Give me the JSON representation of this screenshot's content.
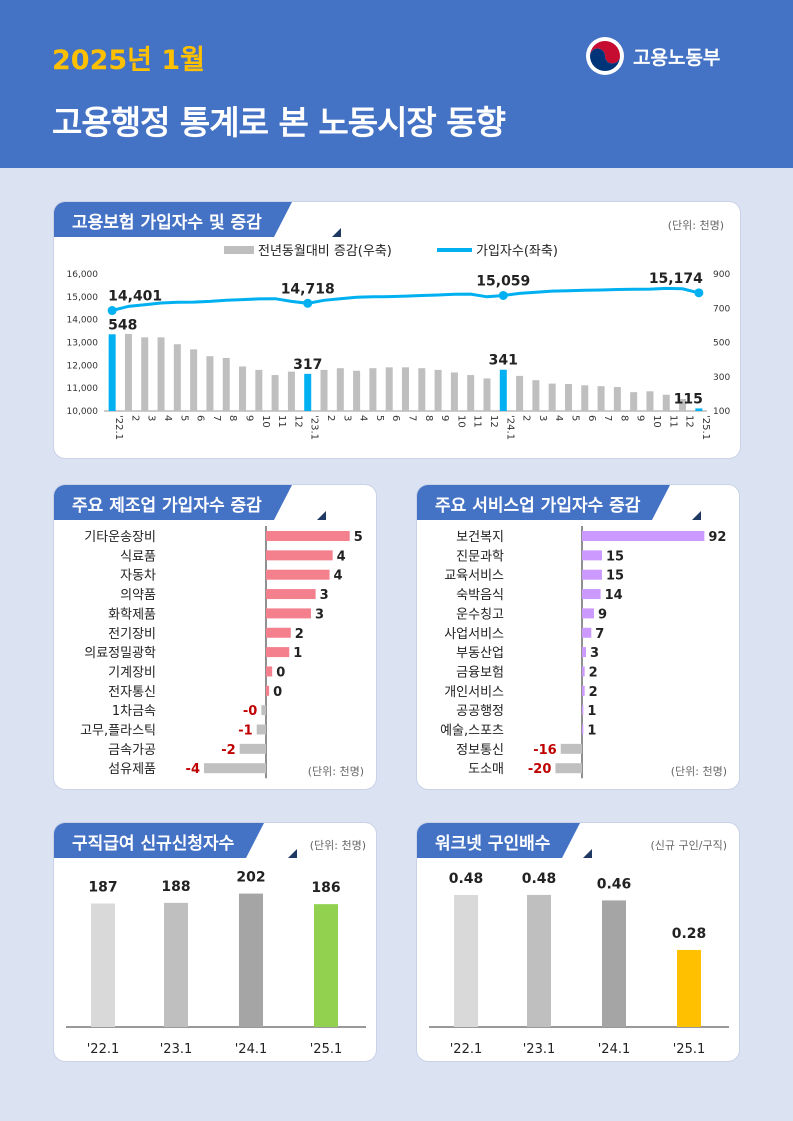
{
  "header": {
    "subtitle": "2025년 1월",
    "title": "고용행정 통계로 본 노동시장 동향",
    "ministry": "고용노동부",
    "logo_icon": "taegeuk-icon",
    "colors": {
      "banner": "#4472c4",
      "subtitle": "#ffc000"
    }
  },
  "panels": {
    "insurance": {
      "title": "고용보험 가입자수 및 증감",
      "unit": "(단위: 천명)"
    },
    "manufacturing": {
      "title": "주요 제조업 가입자수 증감",
      "unit": "(단위: 천명)"
    },
    "services": {
      "title": "주요 서비스업 가입자수 증감",
      "unit": "(단위: 천명)"
    },
    "jobseeking": {
      "title": "구직급여 신규신청자수",
      "unit": "(단위: 천명)"
    },
    "worknet": {
      "title": "워크넷 구인배수",
      "unit": "(신규 구인/구직)"
    }
  },
  "chart_data": [
    {
      "type": "bar+line",
      "categories": [
        "'22.1",
        "2",
        "3",
        "4",
        "5",
        "6",
        "7",
        "8",
        "9",
        "10",
        "11",
        "12",
        "'23.1",
        "2",
        "3",
        "4",
        "5",
        "6",
        "7",
        "8",
        "9",
        "10",
        "11",
        "12",
        "'24.1",
        "2",
        "3",
        "4",
        "5",
        "6",
        "7",
        "8",
        "9",
        "10",
        "11",
        "12",
        "'25.1"
      ],
      "series": [
        {
          "name": "전년동월대비 증감(우축)",
          "axis": "right",
          "color": "#bfbfbf",
          "highlight_color": "#00b0f0",
          "highlight": [
            0,
            12,
            24,
            36
          ],
          "values": [
            548,
            550,
            530,
            530,
            490,
            460,
            420,
            410,
            360,
            340,
            310,
            330,
            317,
            340,
            350,
            335,
            350,
            355,
            355,
            350,
            340,
            325,
            310,
            290,
            341,
            305,
            280,
            260,
            258,
            250,
            245,
            240,
            210,
            215,
            195,
            170,
            115
          ]
        },
        {
          "name": "가입자수(좌축)",
          "axis": "left",
          "color": "#00b0f0",
          "values": [
            14401,
            14580,
            14650,
            14730,
            14760,
            14770,
            14800,
            14850,
            14880,
            14910,
            14920,
            14800,
            14718,
            14850,
            14920,
            14980,
            15000,
            15010,
            15030,
            15060,
            15080,
            15110,
            15120,
            15000,
            15059,
            15150,
            15200,
            15250,
            15270,
            15290,
            15300,
            15320,
            15330,
            15340,
            15370,
            15350,
            15174
          ]
        }
      ],
      "labels": [
        {
          "index": 0,
          "bar": "548",
          "line": "14,401"
        },
        {
          "index": 12,
          "bar": "317",
          "line": "14,718"
        },
        {
          "index": 24,
          "bar": "341",
          "line": "15,059"
        },
        {
          "index": 36,
          "bar": "115",
          "line": "15,174"
        }
      ],
      "left_axis": {
        "range": [
          10000,
          16000
        ],
        "ticks": [
          "10,000",
          "11,000",
          "12,000",
          "13,000",
          "14,000",
          "15,000",
          "16,000"
        ]
      },
      "right_axis": {
        "range": [
          100,
          900
        ],
        "ticks": [
          "100",
          "300",
          "500",
          "700",
          "900"
        ]
      },
      "legend_position": "top"
    },
    {
      "type": "bar",
      "orientation": "horizontal",
      "categories": [
        "기타운송장비",
        "식료품",
        "자동차",
        "의약품",
        "화학제품",
        "전기장비",
        "의료정밀광학",
        "기계장비",
        "전자통신",
        "1차금속",
        "고무,플라스틱",
        "금속가공",
        "섬유제품"
      ],
      "values": [
        5.4,
        4.3,
        4.1,
        3.2,
        2.9,
        1.6,
        1.5,
        0.4,
        0.2,
        -0.3,
        -0.6,
        -1.7,
        -4.0
      ],
      "value_labels": [
        "5",
        "4",
        "4",
        "3",
        "3",
        "2",
        "1",
        "0",
        "0",
        "-0",
        "-1",
        "-2",
        "-4"
      ],
      "xlim": [
        -4.8,
        5.5
      ],
      "colors": {
        "positive": "#f4808e",
        "negative": "#c0c0c0",
        "negative_label": "#c00000"
      }
    },
    {
      "type": "bar",
      "orientation": "horizontal",
      "categories": [
        "보건복지",
        "진문과학",
        "교육서비스",
        "숙박음식",
        "운수칭고",
        "사업서비스",
        "부동산업",
        "금융보험",
        "개인서비스",
        "공공행정",
        "예술,스포츠",
        "정보통신",
        "도소매"
      ],
      "values": [
        92,
        15,
        15,
        14,
        9,
        7,
        3,
        2,
        2,
        1,
        1,
        -16,
        -20
      ],
      "value_labels": [
        "92",
        "15",
        "15",
        "14",
        "9",
        "7",
        "3",
        "2",
        "2",
        "1",
        "1",
        "-16",
        "-20"
      ],
      "xlim": [
        -21,
        93
      ],
      "colors": {
        "positive": "#cc99ff",
        "negative": "#c0c0c0",
        "negative_label": "#c00000"
      }
    },
    {
      "type": "bar",
      "categories": [
        "'22.1",
        "'23.1",
        "'24.1",
        "'25.1"
      ],
      "values": [
        187,
        188,
        202,
        186
      ],
      "ylim": [
        0,
        215
      ],
      "colors": [
        "#d9d9d9",
        "#bfbfbf",
        "#a5a5a5",
        "#92d050"
      ]
    },
    {
      "type": "bar",
      "categories": [
        "'22.1",
        "'23.1",
        "'24.1",
        "'25.1"
      ],
      "values": [
        0.48,
        0.48,
        0.46,
        0.28
      ],
      "value_labels": [
        "0.48",
        "0.48",
        "0.46",
        "0.28"
      ],
      "ylim": [
        0,
        0.516
      ],
      "colors": [
        "#d9d9d9",
        "#bfbfbf",
        "#a5a5a5",
        "#ffc000"
      ]
    }
  ]
}
